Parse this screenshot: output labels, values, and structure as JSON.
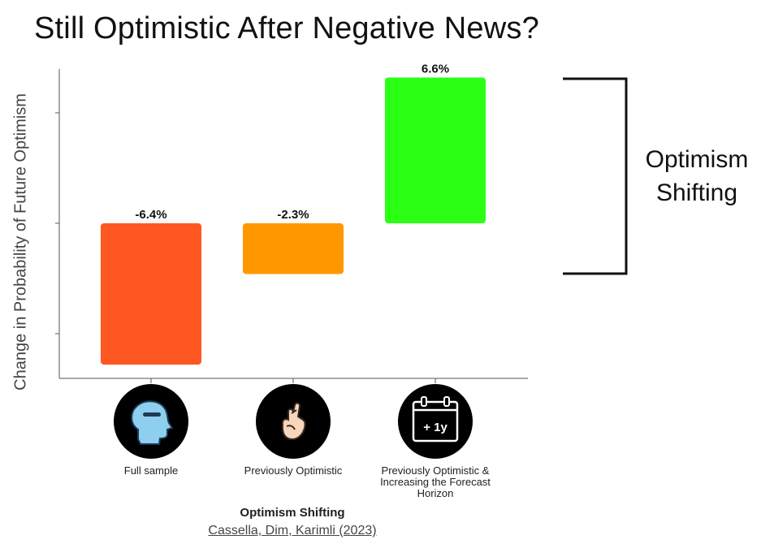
{
  "title": "Still Optimistic After Negative News?",
  "chart_data": {
    "type": "bar",
    "subtype": "waterfall",
    "title": "Still Optimistic After Negative News?",
    "ylabel": "Change in Probability of Future Optimism",
    "xlabel": "Optimism Shifting",
    "categories": [
      "Full sample",
      "Previously Optimistic",
      "Previously Optimistic & Increasing the Forecast Horizon"
    ],
    "values": [
      -6.4,
      -2.3,
      6.6
    ],
    "data_labels": [
      "-6.4%",
      "-2.3%",
      "6.6%"
    ],
    "colors": [
      "#ff5722",
      "#ff9800",
      "#2aff14"
    ],
    "ylim": [
      -7,
      7
    ],
    "grid": false
  },
  "subtitle": "Optimism Shifting",
  "source": "Cassella, Dim, Karimli (2023)",
  "bracket": {
    "label_line1": "Optimism",
    "label_line2": "Shifting"
  },
  "icons": [
    {
      "name": "head-minus-icon"
    },
    {
      "name": "crossed-fingers-icon"
    },
    {
      "name": "calendar-plus-icon",
      "text": "+ 1y"
    }
  ]
}
